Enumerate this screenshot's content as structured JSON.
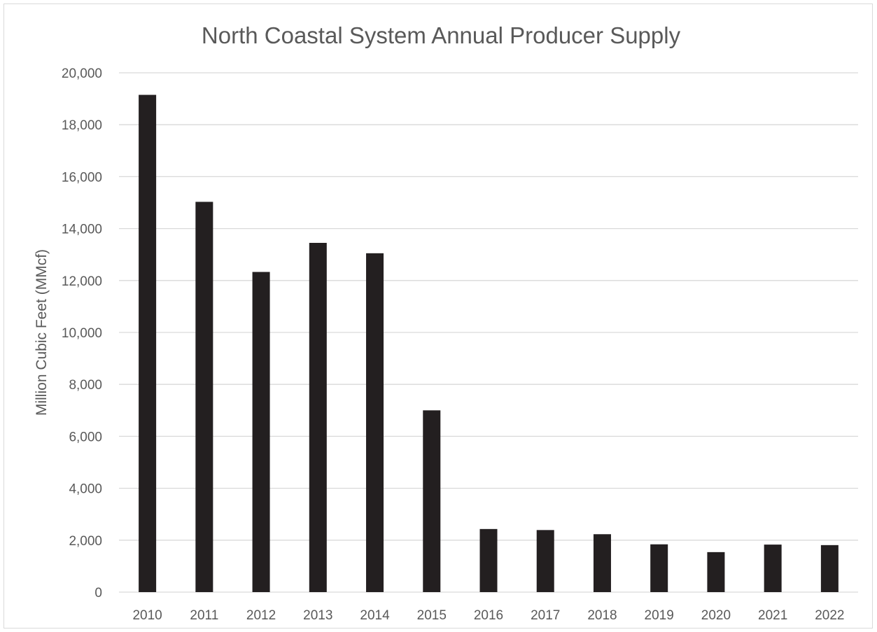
{
  "chart_data": {
    "type": "bar",
    "title": "North Coastal System Annual Producer Supply",
    "xlabel": "",
    "ylabel": "Million Cubic Feet (MMcf)",
    "categories": [
      "2010",
      "2011",
      "2012",
      "2013",
      "2014",
      "2015",
      "2016",
      "2017",
      "2018",
      "2019",
      "2020",
      "2021",
      "2022"
    ],
    "values": [
      19150,
      15030,
      12330,
      13450,
      13050,
      7000,
      2430,
      2390,
      2230,
      1840,
      1540,
      1830,
      1810
    ],
    "ylim": [
      0,
      20000
    ],
    "y_ticks": [
      "0",
      "2,000",
      "4,000",
      "6,000",
      "8,000",
      "10,000",
      "12,000",
      "14,000",
      "16,000",
      "18,000",
      "20,000"
    ],
    "y_tick_values": [
      0,
      2000,
      4000,
      6000,
      8000,
      10000,
      12000,
      14000,
      16000,
      18000,
      20000
    ],
    "grid": true,
    "legend": "none",
    "colors": {
      "bar": "#231f20",
      "grid": "#d9d9d9",
      "text": "#595959"
    }
  }
}
